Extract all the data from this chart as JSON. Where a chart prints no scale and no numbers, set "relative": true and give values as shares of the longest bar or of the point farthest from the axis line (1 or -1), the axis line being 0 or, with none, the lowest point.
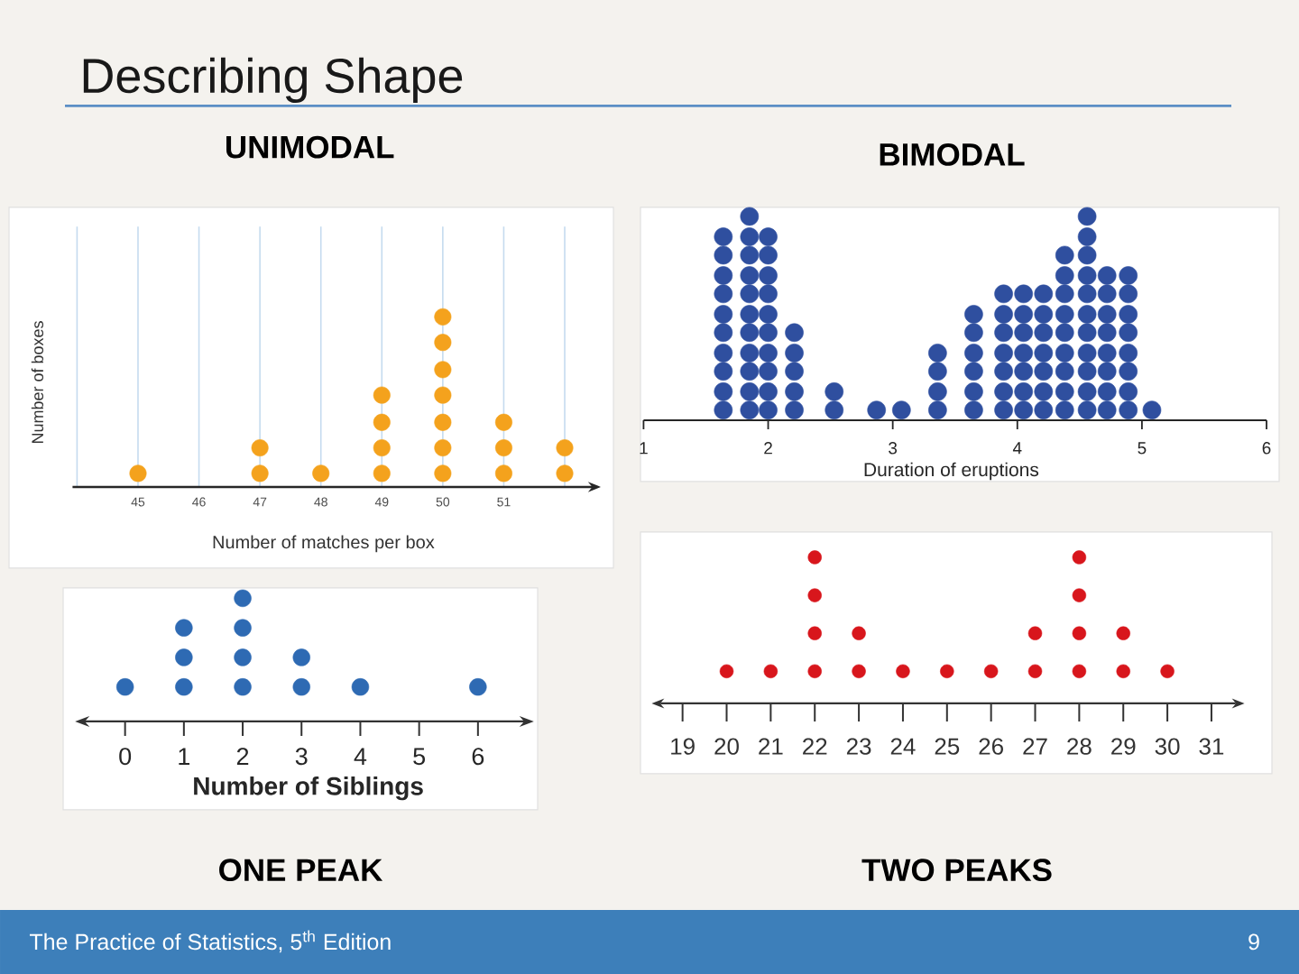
{
  "chart_data": [
    {
      "type": "other",
      "title": "Describing Shape",
      "annotations": [
        "The Practice of Statistics, 5$^{th}$ Edition",
        "9"
      ]
    },
    {
      "type": "scatter",
      "title": "UNIMODAL",
      "xlabel": "Number of matches per box",
      "ylabel": "Number of boxes",
      "marker": "circle",
      "color": "#f4a21d",
      "relative": true,
      "x": [
        45,
        47,
        47,
        48,
        49,
        49,
        49,
        49,
        50,
        50,
        50,
        50,
        50,
        50,
        50,
        51,
        51,
        51,
        52,
        52
      ],
      "values": [
        0.08,
        0.08,
        0.23,
        0.08,
        0.08,
        0.23,
        0.38,
        0.54,
        0.08,
        0.23,
        0.38,
        0.54,
        0.69,
        0.85,
        1,
        0.08,
        0.23,
        0.38,
        0.08,
        0.23
      ],
      "xlim": [
        44,
        52
      ],
      "xticks": [
        {
          "value": 44,
          "label": null
        },
        45,
        46,
        47,
        48,
        49,
        50,
        51,
        {
          "value": 52,
          "label": null
        }
      ],
      "grid": "x"
    },
    {
      "type": "scatter",
      "title": "BIMODAL",
      "xlabel": "Duration of eruptions",
      "marker": "circle",
      "color": "#2f4f9f",
      "relative": true,
      "x": [
        1.64,
        1.64,
        1.64,
        1.64,
        1.64,
        1.64,
        1.64,
        1.64,
        1.64,
        1.64,
        1.85,
        1.85,
        1.85,
        1.85,
        1.85,
        1.85,
        1.85,
        1.85,
        1.85,
        1.85,
        1.85,
        2.0,
        2.0,
        2.0,
        2.0,
        2.0,
        2.0,
        2.0,
        2.0,
        2.0,
        2.0,
        2.21,
        2.21,
        2.21,
        2.21,
        2.21,
        2.53,
        2.53,
        2.87,
        3.07,
        3.36,
        3.36,
        3.36,
        3.36,
        3.65,
        3.65,
        3.65,
        3.65,
        3.65,
        3.65,
        3.89,
        3.89,
        3.89,
        3.89,
        3.89,
        3.89,
        3.89,
        4.05,
        4.05,
        4.05,
        4.05,
        4.05,
        4.05,
        4.05,
        4.21,
        4.21,
        4.21,
        4.21,
        4.21,
        4.21,
        4.21,
        4.38,
        4.38,
        4.38,
        4.38,
        4.38,
        4.38,
        4.38,
        4.38,
        4.38,
        4.56,
        4.56,
        4.56,
        4.56,
        4.56,
        4.56,
        4.56,
        4.56,
        4.56,
        4.56,
        4.56,
        4.72,
        4.72,
        4.72,
        4.72,
        4.72,
        4.72,
        4.72,
        4.72,
        4.89,
        4.89,
        4.89,
        4.89,
        4.89,
        4.89,
        4.89,
        4.89,
        5.08
      ],
      "values": [
        0.05,
        0.14,
        0.24,
        0.33,
        0.43,
        0.52,
        0.62,
        0.71,
        0.81,
        0.9,
        0.05,
        0.14,
        0.24,
        0.33,
        0.43,
        0.52,
        0.62,
        0.71,
        0.81,
        0.9,
        1,
        0.05,
        0.14,
        0.24,
        0.33,
        0.43,
        0.52,
        0.62,
        0.71,
        0.81,
        0.9,
        0.05,
        0.14,
        0.24,
        0.33,
        0.43,
        0.05,
        0.14,
        0.05,
        0.05,
        0.05,
        0.14,
        0.24,
        0.33,
        0.05,
        0.14,
        0.24,
        0.33,
        0.43,
        0.52,
        0.05,
        0.14,
        0.24,
        0.33,
        0.43,
        0.52,
        0.62,
        0.05,
        0.14,
        0.24,
        0.33,
        0.43,
        0.52,
        0.62,
        0.05,
        0.14,
        0.24,
        0.33,
        0.43,
        0.52,
        0.62,
        0.05,
        0.14,
        0.24,
        0.33,
        0.43,
        0.52,
        0.62,
        0.71,
        0.81,
        0.05,
        0.14,
        0.24,
        0.33,
        0.43,
        0.52,
        0.62,
        0.71,
        0.81,
        0.9,
        1,
        0.05,
        0.14,
        0.24,
        0.33,
        0.43,
        0.52,
        0.62,
        0.71,
        0.05,
        0.14,
        0.24,
        0.33,
        0.43,
        0.52,
        0.62,
        0.71,
        0.05
      ],
      "xlim": [
        1,
        6
      ],
      "xticks": [
        1,
        2,
        3,
        4,
        5,
        6
      ]
    },
    {
      "type": "scatter",
      "xlabel": "Number of Siblings",
      "annotations": [
        "ONE PEAK"
      ],
      "marker": "circle",
      "color": "#2e6ab3",
      "relative": true,
      "x": [
        0,
        1,
        1,
        1,
        2,
        2,
        2,
        2,
        3,
        3,
        4,
        6
      ],
      "values": [
        0.28,
        0.28,
        0.52,
        0.76,
        0.28,
        0.52,
        0.76,
        1,
        0.28,
        0.52,
        0.28,
        0.28
      ],
      "xlim": [
        -0.7,
        6.8
      ],
      "xticks": [
        0,
        1,
        2,
        3,
        4,
        5,
        6
      ]
    },
    {
      "type": "scatter",
      "annotations": [
        "TWO PEAKS"
      ],
      "marker": "circle",
      "color": "#d8161c",
      "relative": true,
      "x": [
        20,
        21,
        22,
        22,
        22,
        22,
        23,
        23,
        24,
        25,
        26,
        27,
        27,
        28,
        28,
        28,
        28,
        29,
        29,
        30
      ],
      "values": [
        0.22,
        0.22,
        0.22,
        0.48,
        0.74,
        1,
        0.22,
        0.48,
        0.22,
        0.22,
        0.22,
        0.22,
        0.48,
        0.22,
        0.48,
        0.74,
        1,
        0.22,
        0.48,
        0.22
      ],
      "xlim": [
        18.5,
        31.55
      ],
      "xticks": [
        19,
        20,
        21,
        22,
        23,
        24,
        25,
        26,
        27,
        28,
        29,
        30,
        31
      ]
    }
  ]
}
